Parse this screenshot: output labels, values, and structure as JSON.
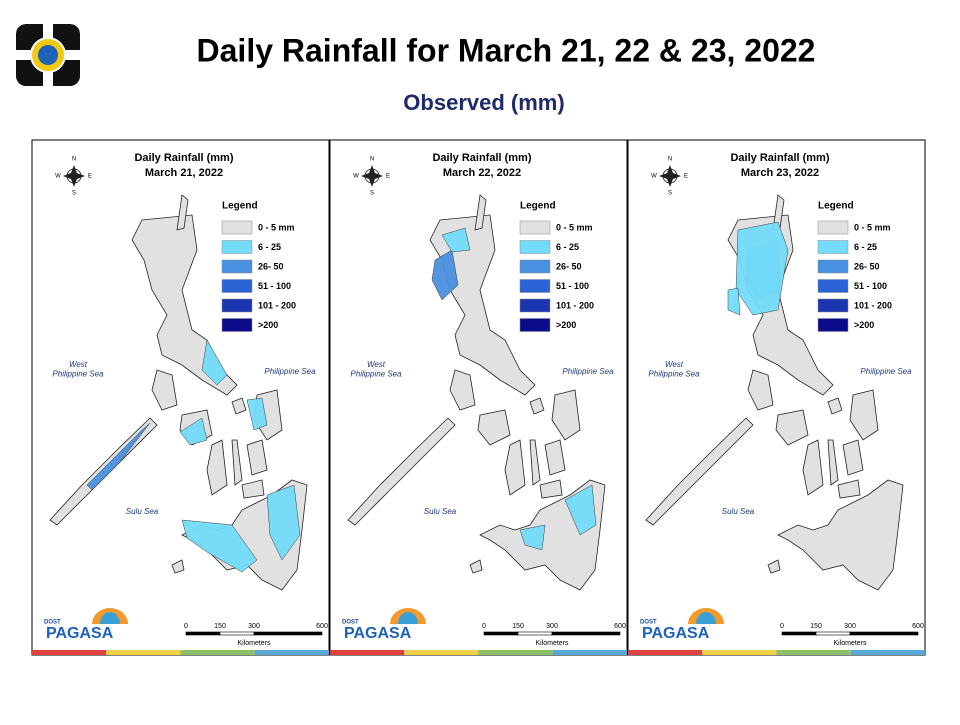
{
  "header": {
    "title": "Daily Rainfall for March 21, 22 & 23, 2022",
    "subtitle": "Observed (mm)"
  },
  "panels": [
    {
      "map_title": "Daily Rainfall (mm)",
      "date": "March 21, 2022"
    },
    {
      "map_title": "Daily Rainfall (mm)",
      "date": "March 22, 2022"
    },
    {
      "map_title": "Daily Rainfall (mm)",
      "date": "March 23, 2022"
    }
  ],
  "legend": {
    "title": "Legend",
    "items": [
      {
        "label": "0 - 5 mm",
        "color": "#e1e1e1"
      },
      {
        "label": "6 - 25",
        "color": "#73dcfa"
      },
      {
        "label": "26- 50",
        "color": "#4a90e0"
      },
      {
        "label": "51 - 100",
        "color": "#2a63d6"
      },
      {
        "label": "101 - 200",
        "color": "#1b35b0"
      },
      {
        "label": ">200",
        "color": "#0c0c8a"
      }
    ]
  },
  "seas": {
    "west": "West\nPhilippine Sea",
    "east": "Philippine Sea",
    "sulu": "Sulu Sea"
  },
  "compass": {
    "n": "N",
    "s": "S",
    "e": "E",
    "w": "W"
  },
  "scale": {
    "ticks": [
      0,
      150,
      300,
      600
    ],
    "unit": "Kilometers"
  },
  "logo": {
    "agency": "PAGASA",
    "dept": "DOST"
  }
}
